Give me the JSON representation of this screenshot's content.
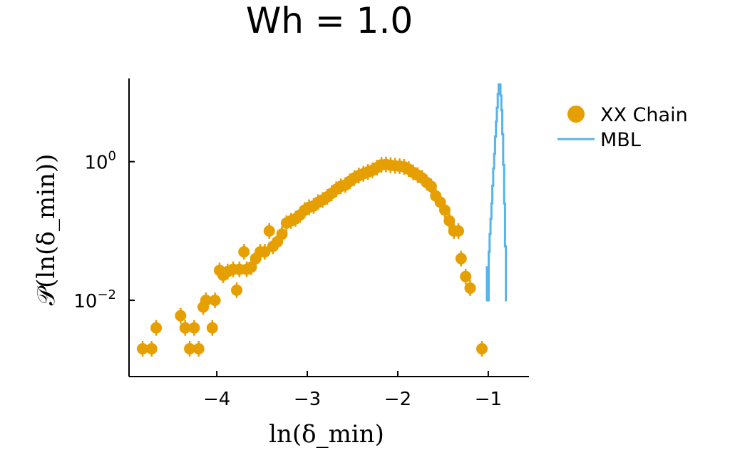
{
  "chart_data": {
    "type": "scatter",
    "title": "Wh = 1.0",
    "xlabel": "ln(δ_min)",
    "ylabel": "𝒫(ln(δ_min))",
    "xlim": [
      -4.97,
      -0.55
    ],
    "ylim_log10": [
      -3.1,
      1.2
    ],
    "yscale": "log",
    "xticks": [
      {
        "value": -4,
        "label": "−4"
      },
      {
        "value": -3,
        "label": "−3"
      },
      {
        "value": -2,
        "label": "−2"
      },
      {
        "value": -1,
        "label": "−1"
      }
    ],
    "yticks": [
      {
        "exp": 0,
        "base": "10",
        "sup": "0"
      },
      {
        "exp": -2,
        "base": "10",
        "sup": "−2"
      }
    ],
    "legend": [
      {
        "name": "XX Chain",
        "marker": "circle",
        "color": "#e69f00"
      },
      {
        "name": "MBL",
        "marker": "line",
        "color": "#56b4e9"
      }
    ],
    "series": [
      {
        "name": "XX Chain",
        "kind": "points-with-errorbars",
        "color": "#e69f00",
        "points": [
          [
            -4.82,
            0.002
          ],
          [
            -4.72,
            0.002
          ],
          [
            -4.67,
            0.004
          ],
          [
            -4.4,
            0.006
          ],
          [
            -4.35,
            0.004
          ],
          [
            -4.3,
            0.002
          ],
          [
            -4.25,
            0.004
          ],
          [
            -4.2,
            0.002
          ],
          [
            -4.15,
            0.008
          ],
          [
            -4.12,
            0.01
          ],
          [
            -4.05,
            0.004
          ],
          [
            -4.02,
            0.01
          ],
          [
            -3.97,
            0.027
          ],
          [
            -3.93,
            0.023
          ],
          [
            -3.88,
            0.026
          ],
          [
            -3.82,
            0.028
          ],
          [
            -3.78,
            0.014
          ],
          [
            -3.75,
            0.028
          ],
          [
            -3.7,
            0.05
          ],
          [
            -3.67,
            0.028
          ],
          [
            -3.62,
            0.03
          ],
          [
            -3.57,
            0.04
          ],
          [
            -3.52,
            0.05
          ],
          [
            -3.47,
            0.05
          ],
          [
            -3.42,
            0.1
          ],
          [
            -3.38,
            0.06
          ],
          [
            -3.33,
            0.07
          ],
          [
            -3.28,
            0.09
          ],
          [
            -3.23,
            0.13
          ],
          [
            -3.18,
            0.14
          ],
          [
            -3.13,
            0.15
          ],
          [
            -3.08,
            0.17
          ],
          [
            -3.03,
            0.2
          ],
          [
            -2.98,
            0.22
          ],
          [
            -2.93,
            0.23
          ],
          [
            -2.88,
            0.26
          ],
          [
            -2.83,
            0.28
          ],
          [
            -2.78,
            0.31
          ],
          [
            -2.73,
            0.35
          ],
          [
            -2.68,
            0.4
          ],
          [
            -2.63,
            0.44
          ],
          [
            -2.58,
            0.46
          ],
          [
            -2.53,
            0.52
          ],
          [
            -2.48,
            0.58
          ],
          [
            -2.43,
            0.63
          ],
          [
            -2.38,
            0.67
          ],
          [
            -2.33,
            0.71
          ],
          [
            -2.28,
            0.75
          ],
          [
            -2.23,
            0.82
          ],
          [
            -2.18,
            0.9
          ],
          [
            -2.13,
            0.91
          ],
          [
            -2.08,
            0.89
          ],
          [
            -2.03,
            0.87
          ],
          [
            -1.98,
            0.86
          ],
          [
            -1.93,
            0.84
          ],
          [
            -1.88,
            0.78
          ],
          [
            -1.83,
            0.7
          ],
          [
            -1.78,
            0.64
          ],
          [
            -1.73,
            0.58
          ],
          [
            -1.68,
            0.5
          ],
          [
            -1.63,
            0.44
          ],
          [
            -1.58,
            0.32
          ],
          [
            -1.53,
            0.26
          ],
          [
            -1.48,
            0.2
          ],
          [
            -1.43,
            0.14
          ],
          [
            -1.38,
            0.1
          ],
          [
            -1.33,
            0.1
          ],
          [
            -1.3,
            0.04
          ],
          [
            -1.25,
            0.022
          ],
          [
            -1.2,
            0.015
          ],
          [
            -1.07,
            0.002
          ]
        ]
      },
      {
        "name": "MBL",
        "kind": "step",
        "color": "#56b4e9",
        "points": [
          [
            -1.02,
            0.01
          ],
          [
            -1.01,
            0.03
          ],
          [
            -1.0,
            0.01
          ],
          [
            -0.99,
            0.05
          ],
          [
            -0.98,
            0.09
          ],
          [
            -0.97,
            0.15
          ],
          [
            -0.96,
            0.25
          ],
          [
            -0.95,
            0.45
          ],
          [
            -0.94,
            0.8
          ],
          [
            -0.93,
            1.3
          ],
          [
            -0.92,
            2.3
          ],
          [
            -0.91,
            3.8
          ],
          [
            -0.9,
            6.0
          ],
          [
            -0.89,
            9.5
          ],
          [
            -0.88,
            13.0
          ],
          [
            -0.87,
            13.0
          ],
          [
            -0.86,
            9.0
          ],
          [
            -0.85,
            5.5
          ],
          [
            -0.84,
            2.5
          ],
          [
            -0.83,
            0.9
          ],
          [
            -0.82,
            0.25
          ],
          [
            -0.81,
            0.06
          ],
          [
            -0.8,
            0.01
          ]
        ]
      }
    ]
  }
}
